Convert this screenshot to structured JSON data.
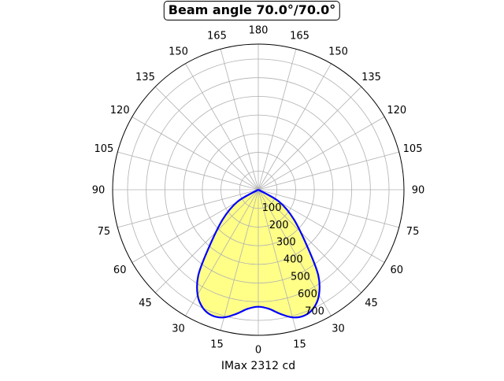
{
  "chart_data": {
    "type": "polar",
    "title": "Beam angle 70.0°/70.0°",
    "xlabel": "IMax 2312 cd",
    "angle_tick_labels": [
      "0",
      "15",
      "30",
      "45",
      "60",
      "75",
      "90",
      "105",
      "120",
      "135",
      "150",
      "165",
      "180",
      "165",
      "150",
      "135",
      "120",
      "105",
      "90",
      "75",
      "60",
      "45",
      "30",
      "15"
    ],
    "radial_ticks": [
      100,
      200,
      300,
      400,
      500,
      600,
      700
    ],
    "rlim": [
      0,
      780
    ],
    "grid": true,
    "series": [
      {
        "color": "#0000ff",
        "fill": "#ffff88",
        "points": [
          {
            "angle": -90,
            "value": 0
          },
          {
            "angle": -60,
            "value": 130
          },
          {
            "angle": -50,
            "value": 250
          },
          {
            "angle": -40,
            "value": 420
          },
          {
            "angle": -35,
            "value": 560
          },
          {
            "angle": -30,
            "value": 650
          },
          {
            "angle": -25,
            "value": 700
          },
          {
            "angle": -20,
            "value": 718
          },
          {
            "angle": -15,
            "value": 708
          },
          {
            "angle": -10,
            "value": 675
          },
          {
            "angle": -5,
            "value": 640
          },
          {
            "angle": 0,
            "value": 627
          },
          {
            "angle": 5,
            "value": 640
          },
          {
            "angle": 10,
            "value": 675
          },
          {
            "angle": 15,
            "value": 708
          },
          {
            "angle": 20,
            "value": 718
          },
          {
            "angle": 25,
            "value": 700
          },
          {
            "angle": 30,
            "value": 650
          },
          {
            "angle": 35,
            "value": 560
          },
          {
            "angle": 40,
            "value": 420
          },
          {
            "angle": 50,
            "value": 250
          },
          {
            "angle": 60,
            "value": 130
          },
          {
            "angle": 90,
            "value": 0
          }
        ]
      }
    ]
  }
}
